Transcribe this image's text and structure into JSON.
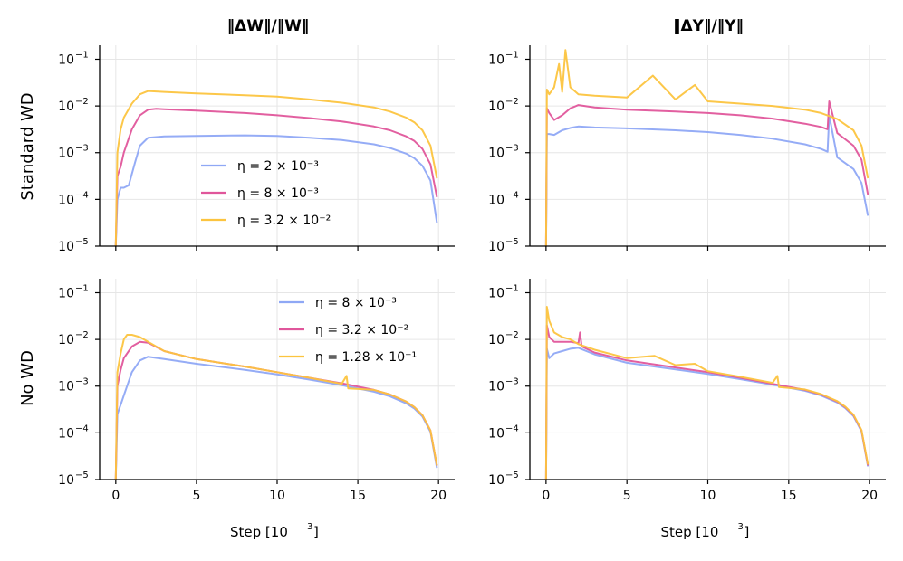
{
  "figure": {
    "col_titles": [
      "‖ΔW‖/‖W‖",
      "‖ΔY‖/‖Y‖"
    ],
    "row_labels": [
      "Standard WD",
      "No WD"
    ],
    "x_label": "Step [10",
    "x_label_sup": "3",
    "x_label_end": "]",
    "x_ticks": [
      "0",
      "5",
      "10",
      "15",
      "20"
    ],
    "y_tick_base": "10",
    "y_tick_exps": [
      "−5",
      "−4",
      "−3",
      "−2",
      "−1"
    ]
  },
  "chart_data": [
    {
      "type": "line",
      "title": "‖ΔW‖/‖W‖",
      "row": "Standard WD",
      "xlabel": "",
      "ylabel": "Standard WD",
      "xlim": [
        -1,
        21
      ],
      "ylim_log10": [
        -5,
        -0.7
      ],
      "yscale": "log",
      "legend": "center-left",
      "series": [
        {
          "name": "η = 2 × 10⁻³",
          "color": "#8fa8f5",
          "x": [
            0,
            0.1,
            0.3,
            0.5,
            0.8,
            1.2,
            1.5,
            2,
            3,
            5,
            8,
            10,
            12,
            14,
            16,
            17,
            18,
            18.5,
            19,
            19.5,
            19.9
          ],
          "log10_y": [
            -5,
            -4,
            -3.75,
            -3.75,
            -3.7,
            -3.2,
            -2.85,
            -2.68,
            -2.65,
            -2.64,
            -2.63,
            -2.64,
            -2.68,
            -2.73,
            -2.82,
            -2.9,
            -3.02,
            -3.12,
            -3.28,
            -3.6,
            -4.5
          ]
        },
        {
          "name": "η = 8 × 10⁻³",
          "color": "#e0569b",
          "x": [
            0,
            0.1,
            0.3,
            0.5,
            1,
            1.5,
            2,
            2.5,
            3,
            5,
            8,
            10,
            12,
            14,
            16,
            17,
            18,
            18.5,
            19,
            19.5,
            19.9
          ],
          "log10_y": [
            -5,
            -3.5,
            -3.3,
            -3.0,
            -2.5,
            -2.2,
            -2.08,
            -2.06,
            -2.07,
            -2.1,
            -2.15,
            -2.2,
            -2.26,
            -2.33,
            -2.44,
            -2.52,
            -2.65,
            -2.75,
            -2.92,
            -3.25,
            -3.95
          ]
        },
        {
          "name": "η = 3.2 × 10⁻²",
          "color": "#fcc43f",
          "x": [
            0,
            0.1,
            0.3,
            0.5,
            1,
            1.5,
            2,
            3,
            5,
            8,
            10,
            12,
            14,
            16,
            17,
            18,
            18.5,
            19,
            19.5,
            19.9
          ],
          "log10_y": [
            -5,
            -3.0,
            -2.5,
            -2.25,
            -1.95,
            -1.75,
            -1.68,
            -1.7,
            -1.73,
            -1.77,
            -1.8,
            -1.86,
            -1.93,
            -2.03,
            -2.12,
            -2.25,
            -2.35,
            -2.52,
            -2.85,
            -3.55
          ]
        }
      ]
    },
    {
      "type": "line",
      "title": "‖ΔY‖/‖Y‖",
      "row": "Standard WD",
      "xlim": [
        -1,
        21
      ],
      "ylim_log10": [
        -5,
        -0.7
      ],
      "yscale": "log",
      "series": [
        {
          "name": "η = 2 × 10⁻³",
          "color": "#8fa8f5",
          "x": [
            0,
            0.05,
            0.2,
            0.5,
            1,
            1.5,
            2,
            3,
            5,
            8,
            10,
            12,
            14,
            16,
            17,
            17.4,
            17.5,
            18,
            19,
            19.5,
            19.9
          ],
          "log10_y": [
            -5,
            -2.6,
            -2.6,
            -2.62,
            -2.52,
            -2.47,
            -2.44,
            -2.46,
            -2.48,
            -2.52,
            -2.56,
            -2.62,
            -2.7,
            -2.82,
            -2.92,
            -2.98,
            -2.2,
            -3.1,
            -3.35,
            -3.65,
            -4.35
          ]
        },
        {
          "name": "η = 8 × 10⁻³",
          "color": "#e0569b",
          "x": [
            0,
            0.05,
            0.2,
            0.5,
            1,
            1.5,
            2,
            3,
            5,
            8,
            10,
            12,
            14,
            16,
            17,
            17.4,
            17.5,
            18,
            19,
            19.5,
            19.9
          ],
          "log10_y": [
            -5,
            -2.05,
            -2.15,
            -2.3,
            -2.2,
            -2.05,
            -1.98,
            -2.03,
            -2.08,
            -2.12,
            -2.15,
            -2.2,
            -2.27,
            -2.38,
            -2.45,
            -2.5,
            -1.9,
            -2.58,
            -2.85,
            -3.15,
            -3.9
          ]
        },
        {
          "name": "η = 3.2 × 10⁻²",
          "color": "#fcc43f",
          "x": [
            0,
            0.05,
            0.2,
            0.5,
            0.8,
            1,
            1.2,
            1.5,
            2,
            3,
            5,
            6.6,
            8,
            9.2,
            10,
            12,
            14,
            16,
            17,
            18,
            19,
            19.5,
            19.9
          ],
          "log10_y": [
            -5,
            -1.65,
            -1.75,
            -1.6,
            -1.1,
            -1.7,
            -0.8,
            -1.6,
            -1.75,
            -1.78,
            -1.82,
            -1.35,
            -1.86,
            -1.55,
            -1.9,
            -1.95,
            -2.0,
            -2.08,
            -2.15,
            -2.28,
            -2.52,
            -2.85,
            -3.55
          ]
        }
      ]
    },
    {
      "type": "line",
      "title": "",
      "row": "No WD",
      "xlabel": "Step [10^3]",
      "ylabel": "No WD",
      "xlim": [
        -1,
        21
      ],
      "ylim_log10": [
        -5,
        -0.7
      ],
      "yscale": "log",
      "legend": "top-right",
      "series": [
        {
          "name": "η = 8 × 10⁻³",
          "color": "#8fa8f5",
          "x": [
            0,
            0.1,
            0.3,
            0.5,
            1,
            1.5,
            2,
            3,
            5,
            8,
            10,
            12,
            14,
            16,
            17,
            18,
            18.5,
            19,
            19.5,
            19.9
          ],
          "log10_y": [
            -5,
            -3.6,
            -3.4,
            -3.2,
            -2.7,
            -2.45,
            -2.37,
            -2.42,
            -2.52,
            -2.65,
            -2.75,
            -2.86,
            -2.98,
            -3.12,
            -3.22,
            -3.37,
            -3.48,
            -3.65,
            -3.98,
            -4.75
          ]
        },
        {
          "name": "η = 3.2 × 10⁻²",
          "color": "#e0569b",
          "x": [
            0,
            0.1,
            0.3,
            0.5,
            1,
            1.5,
            2,
            3,
            5,
            8,
            10,
            12,
            14,
            16,
            17,
            18,
            18.5,
            19,
            19.5,
            19.9
          ],
          "log10_y": [
            -5,
            -3.0,
            -2.65,
            -2.4,
            -2.15,
            -2.05,
            -2.07,
            -2.25,
            -2.42,
            -2.58,
            -2.7,
            -2.82,
            -2.94,
            -3.08,
            -3.18,
            -3.33,
            -3.45,
            -3.62,
            -3.95,
            -4.7
          ]
        },
        {
          "name": "η = 1.28 × 10⁻¹",
          "color": "#fcc43f",
          "x": [
            0,
            0.1,
            0.3,
            0.5,
            0.7,
            1,
            1.5,
            2,
            3,
            5,
            8,
            10,
            12,
            14,
            14.3,
            14.4,
            16,
            17,
            18,
            18.5,
            19,
            19.5,
            19.9
          ],
          "log10_y": [
            -5,
            -2.7,
            -2.3,
            -2.0,
            -1.9,
            -1.9,
            -1.95,
            -2.05,
            -2.25,
            -2.42,
            -2.58,
            -2.7,
            -2.82,
            -2.95,
            -2.78,
            -3.05,
            -3.08,
            -3.18,
            -3.33,
            -3.45,
            -3.62,
            -3.95,
            -4.7
          ]
        }
      ]
    },
    {
      "type": "line",
      "title": "",
      "row": "No WD",
      "xlabel": "Step [10^3]",
      "xlim": [
        -1,
        21
      ],
      "ylim_log10": [
        -5,
        -0.7
      ],
      "yscale": "log",
      "series": [
        {
          "name": "η = 8 × 10⁻³",
          "color": "#8fa8f5",
          "x": [
            0,
            0.05,
            0.2,
            0.5,
            1,
            1.5,
            2,
            3,
            5,
            8,
            10,
            12,
            14,
            16,
            17,
            18,
            18.5,
            19,
            19.5,
            19.9
          ],
          "log10_y": [
            -5,
            -2.2,
            -2.4,
            -2.3,
            -2.25,
            -2.2,
            -2.18,
            -2.32,
            -2.5,
            -2.64,
            -2.74,
            -2.85,
            -2.97,
            -3.1,
            -3.2,
            -3.35,
            -3.47,
            -3.64,
            -3.97,
            -4.72
          ]
        },
        {
          "name": "η = 3.2 × 10⁻²",
          "color": "#e0569b",
          "x": [
            0,
            0.05,
            0.2,
            0.5,
            1,
            1.5,
            2,
            2.1,
            2.2,
            3,
            5,
            8,
            10,
            12,
            14,
            16,
            17,
            18,
            18.5,
            19,
            19.5,
            19.9
          ],
          "log10_y": [
            -5,
            -1.7,
            -1.95,
            -2.05,
            -2.05,
            -2.05,
            -2.08,
            -1.85,
            -2.15,
            -2.28,
            -2.45,
            -2.6,
            -2.7,
            -2.82,
            -2.95,
            -3.08,
            -3.18,
            -3.33,
            -3.45,
            -3.62,
            -3.95,
            -4.7
          ]
        },
        {
          "name": "η = 1.28 × 10⁻¹",
          "color": "#fcc43f",
          "x": [
            0,
            0.05,
            0.2,
            0.5,
            1,
            1.5,
            2,
            3,
            5,
            6.7,
            8,
            9.2,
            10,
            12,
            14,
            14.3,
            14.4,
            16,
            17,
            18,
            18.5,
            19,
            19.5,
            19.9
          ],
          "log10_y": [
            -5,
            -1.3,
            -1.6,
            -1.85,
            -1.95,
            -2.0,
            -2.1,
            -2.22,
            -2.4,
            -2.35,
            -2.55,
            -2.52,
            -2.68,
            -2.8,
            -2.93,
            -2.78,
            -3.02,
            -3.07,
            -3.17,
            -3.32,
            -3.44,
            -3.61,
            -3.94,
            -4.68
          ]
        }
      ]
    }
  ]
}
